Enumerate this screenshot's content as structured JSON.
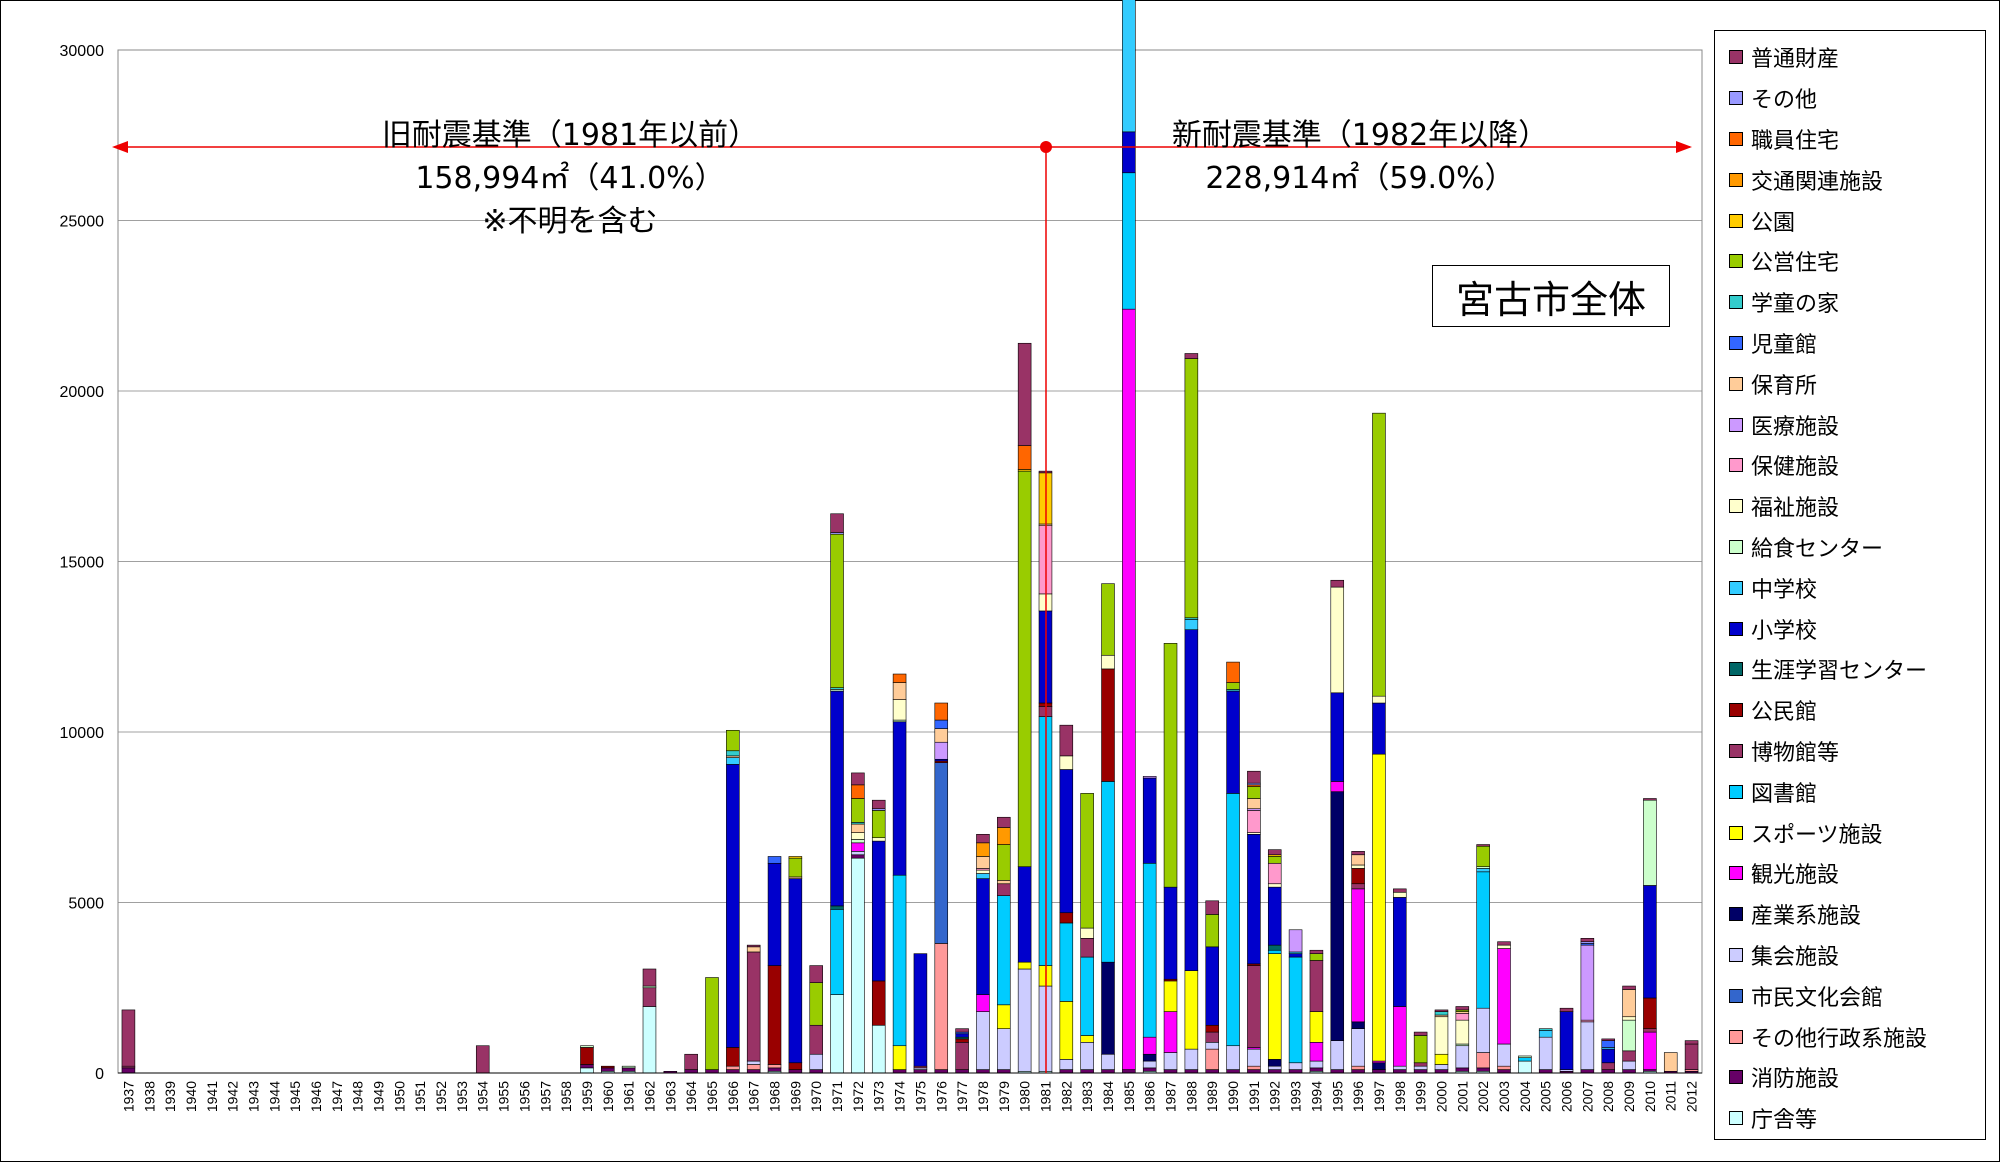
{
  "chart_data": {
    "type": "bar",
    "stacked": true,
    "title": "宮古市全体",
    "xlabel": "",
    "ylabel": "",
    "ylim": [
      0,
      30000
    ],
    "yticks": [
      0,
      5000,
      10000,
      15000,
      20000,
      25000,
      30000
    ],
    "grid": true,
    "legend_position": "right",
    "categories": [
      "1937",
      "1938",
      "1939",
      "1940",
      "1941",
      "1942",
      "1943",
      "1944",
      "1945",
      "1946",
      "1947",
      "1948",
      "1949",
      "1950",
      "1951",
      "1952",
      "1953",
      "1954",
      "1955",
      "1956",
      "1957",
      "1958",
      "1959",
      "1960",
      "1961",
      "1962",
      "1963",
      "1964",
      "1965",
      "1966",
      "1967",
      "1968",
      "1969",
      "1970",
      "1971",
      "1972",
      "1973",
      "1974",
      "1975",
      "1976",
      "1977",
      "1978",
      "1979",
      "1980",
      "1981",
      "1982",
      "1983",
      "1984",
      "1985",
      "1986",
      "1987",
      "1988",
      "1989",
      "1990",
      "1991",
      "1992",
      "1993",
      "1994",
      "1995",
      "1996",
      "1997",
      "1998",
      "1999",
      "2000",
      "2001",
      "2002",
      "2003",
      "2004",
      "2005",
      "2006",
      "2007",
      "2008",
      "2009",
      "2010",
      "2011",
      "2012"
    ],
    "annotations": {
      "old": {
        "line1": "旧耐震基準（1981年以前）",
        "line2": "158,994㎡（41.0%）",
        "line3": "※不明を含む"
      },
      "new": {
        "line1": "新耐震基準（1982年以降）",
        "line2": "228,914㎡（59.0%）"
      }
    },
    "series": [
      {
        "name": "庁舎等",
        "color": "#CCFFFF",
        "values": {
          "1959": 150,
          "1960": 50,
          "1961": 50,
          "1962": 1950,
          "1968": 50,
          "1971": 2300,
          "1972": 6300,
          "1973": 1400,
          "1980": 50,
          "1981": 50,
          "1986": 50,
          "1994": 50,
          "2001": 50,
          "2002": 50,
          "2004": 350,
          "2010": 50
        }
      },
      {
        "name": "消防施設",
        "color": "#660066",
        "values": {
          "1937": 150,
          "1959": 100,
          "1960": 100,
          "1961": 100,
          "1963": 50,
          "1964": 100,
          "1965": 100,
          "1966": 100,
          "1967": 100,
          "1968": 100,
          "1969": 100,
          "1970": 100,
          "1972": 100,
          "1974": 100,
          "1975": 100,
          "1976": 100,
          "1977": 100,
          "1978": 100,
          "1979": 100,
          "1982": 100,
          "1983": 100,
          "1984": 100,
          "1985": 100,
          "1986": 100,
          "1987": 100,
          "1988": 100,
          "1989": 100,
          "1990": 100,
          "1991": 100,
          "1992": 100,
          "1993": 100,
          "1994": 100,
          "1995": 100,
          "1996": 100,
          "1997": 100,
          "1998": 100,
          "1999": 100,
          "2000": 100,
          "2001": 100,
          "2002": 100,
          "2003": 100,
          "2005": 100,
          "2006": 50,
          "2007": 100,
          "2008": 100,
          "2009": 100,
          "2010": 50,
          "2011": 50,
          "2012": 50
        }
      },
      {
        "name": "その他行政系施設",
        "color": "#FF9999",
        "values": {
          "1966": 100,
          "1967": 150,
          "1968": 100,
          "1976": 3700,
          "1989": 600,
          "1991": 100,
          "1996": 100,
          "2002": 450,
          "2003": 100,
          "2012": 50
        }
      },
      {
        "name": "市民文化会館",
        "color": "#3366CC",
        "values": {
          "1976": 5300
        }
      },
      {
        "name": "集会施設",
        "color": "#CCCCFF",
        "values": {
          "1967": 100,
          "1970": 450,
          "1972": 100,
          "1975": 50,
          "1978": 1700,
          "1979": 1200,
          "1980": 3000,
          "1981": 2500,
          "1982": 300,
          "1983": 800,
          "1984": 450,
          "1986": 200,
          "1987": 500,
          "1988": 600,
          "1989": 200,
          "1990": 700,
          "1991": 500,
          "1992": 100,
          "1993": 200,
          "1994": 200,
          "1995": 850,
          "1996": 1100,
          "1998": 100,
          "1999": 100,
          "2000": 150,
          "2001": 650,
          "2002": 1300,
          "2003": 650,
          "2005": 950,
          "2006": 50,
          "2007": 1400,
          "2009": 250
        }
      },
      {
        "name": "産業系施設",
        "color": "#000066",
        "values": {
          "1984": 2700,
          "1986": 200,
          "1992": 200,
          "1995": 7300,
          "1996": 200,
          "1997": 200
        }
      },
      {
        "name": "観光施設",
        "color": "#FF00FF",
        "values": {
          "1972": 250,
          "1978": 500,
          "1983": 0,
          "1985": 22300,
          "1986": 500,
          "1987": 1200,
          "1991": 50,
          "1994": 550,
          "1995": 300,
          "1996": 3900,
          "1997": 50,
          "1998": 1750,
          "2003": 2800,
          "2010": 1100
        }
      },
      {
        "name": "スポーツ施設",
        "color": "#FFFF00",
        "values": {
          "1974": 700,
          "1979": 700,
          "1980": 200,
          "1981": 600,
          "1982": 1700,
          "1983": 200,
          "1987": 900,
          "1988": 2300,
          "1992": 3100,
          "1994": 900,
          "1997": 9000,
          "2000": 300
        }
      },
      {
        "name": "図書館",
        "color": "#00CCFF",
        "values": {
          "1971": 2500,
          "1974": 5000,
          "1979": 3200,
          "1981": 7300,
          "1982": 2300,
          "1983": 2300,
          "1984": 5300,
          "1985": 4000,
          "1986": 5100,
          "1990": 7400,
          "1992": 100,
          "1993": 3100,
          "2002": 4000,
          "2004": 100
        }
      },
      {
        "name": "博物館等",
        "color": "#993366",
        "values": {
          "1937": 50,
          "1954": 800,
          "1962": 550,
          "1964": 450,
          "1967": 3200,
          "1970": 850,
          "1975": 50,
          "1977": 800,
          "1979": 350,
          "1981": 300,
          "1983": 550,
          "1989": 300,
          "1991": 2400,
          "1994": 1500,
          "1996": 150,
          "1999": 100,
          "2008": 200,
          "2009": 300,
          "2010": 100,
          "2012": 750
        }
      },
      {
        "name": "公民館",
        "color": "#990000",
        "values": {
          "1959": 500,
          "1960": 50,
          "1966": 550,
          "1968": 2900,
          "1969": 200,
          "1973": 1300,
          "1976": 50,
          "1977": 100,
          "1981": 100,
          "1982": 300,
          "1984": 3300,
          "1987": 50,
          "1989": 200,
          "1991": 50,
          "1996": 450,
          "2010": 900
        }
      },
      {
        "name": "生涯学習センター",
        "color": "#006666",
        "values": {
          "1971": 100,
          "1977": 50,
          "1992": 150
        }
      },
      {
        "name": "小学校",
        "color": "#0000CC",
        "values": {
          "1966": 8300,
          "1968": 3000,
          "1969": 5400,
          "1971": 6300,
          "1973": 4100,
          "1974": 4500,
          "1975": 3300,
          "1976": 50,
          "1977": 100,
          "1978": 3400,
          "1980": 2800,
          "1981": 2700,
          "1982": 4200,
          "1984": 0,
          "1985": 1200,
          "1986": 2500,
          "1987": 2700,
          "1988": 10000,
          "1989": 2300,
          "1990": 3000,
          "1991": 3800,
          "1992": 1700,
          "1993": 100,
          "1995": 2600,
          "1997": 1500,
          "1998": 3200,
          "2006": 1700,
          "2008": 400,
          "2010": 3300
        }
      },
      {
        "name": "中学校",
        "color": "#33CCFF",
        "values": {
          "1966": 200,
          "1978": 150,
          "1985": 4100,
          "1988": 300,
          "1993": 50,
          "2002": 100,
          "2005": 200,
          "2008": 50
        }
      },
      {
        "name": "給食センター",
        "color": "#CCFFCC",
        "values": {
          "1959": 50,
          "1961": 50,
          "1962": 50,
          "1971": 50,
          "1972": 100,
          "1974": 50,
          "2001": 50,
          "2002": 50,
          "2004": 50,
          "2009": 900,
          "2010": 2500
        }
      },
      {
        "name": "福祉施設",
        "color": "#FFFFCC",
        "values": {
          "1972": 200,
          "1973": 100,
          "1974": 600,
          "1978": 100,
          "1981": 500,
          "1982": 400,
          "1983": 300,
          "1984": 400,
          "1991": 50,
          "1992": 100,
          "1995": 3100,
          "1996": 100,
          "1997": 200,
          "1998": 150,
          "2000": 1100,
          "2001": 700,
          "2003": 100,
          "2009": 100
        }
      },
      {
        "name": "保健施設",
        "color": "#FF99CC",
        "values": {
          "1978": 50,
          "1981": 2000,
          "1991": 650,
          "1992": 600,
          "2001": 200,
          "2007": 50
        }
      },
      {
        "name": "医療施設",
        "color": "#CC99FF",
        "values": {
          "1976": 500,
          "1986": 50,
          "1991": 50,
          "1993": 650,
          "2007": 2200
        }
      },
      {
        "name": "保育所",
        "color": "#FFCC99",
        "values": {
          "1966": 50,
          "1967": 150,
          "1969": 50,
          "1972": 250,
          "1974": 500,
          "1976": 400,
          "1978": 350,
          "1979": 100,
          "1981": 50,
          "1991": 300,
          "1996": 300,
          "2000": 50,
          "2001": 50,
          "2009": 800,
          "2011": 550
        }
      },
      {
        "name": "児童館",
        "color": "#3366FF",
        "values": {
          "1968": 200,
          "1976": 250,
          "1977": 50,
          "2007": 50,
          "2008": 200
        }
      },
      {
        "name": "学童の家",
        "color": "#33CCCC",
        "values": {
          "1966": 150,
          "1971": 50,
          "1972": 50,
          "1985": 50,
          "1988": 50,
          "1990": 50,
          "2000": 100,
          "2004": 0,
          "2005": 50
        }
      },
      {
        "name": "公営住宅",
        "color": "#99CC00",
        "values": {
          "1965": 2700,
          "1966": 600,
          "1969": 550,
          "1970": 1250,
          "1971": 4500,
          "1972": 700,
          "1973": 800,
          "1979": 1050,
          "1980": 11600,
          "1982": 0,
          "1983": 3950,
          "1984": 2100,
          "1985": 550,
          "1987": 7150,
          "1988": 7600,
          "1989": 950,
          "1990": 200,
          "1991": 350,
          "1992": 200,
          "1994": 200,
          "1997": 8300,
          "1999": 800,
          "2001": 50,
          "2002": 600
        }
      },
      {
        "name": "公園",
        "color": "#FFCC00",
        "values": {
          "1969": 50,
          "1980": 50,
          "1981": 1500,
          "1983": 0,
          "1992": 50
        }
      },
      {
        "name": "交通関連施設",
        "color": "#FF9900",
        "values": {
          "1978": 400,
          "1979": 500,
          "1985": 550
        }
      },
      {
        "name": "職員住宅",
        "color": "#FF6600",
        "values": {
          "1972": 400,
          "1974": 250,
          "1976": 500,
          "1980": 700,
          "1990": 600,
          "1991": 50
        }
      },
      {
        "name": "その他",
        "color": "#9999FF",
        "values": {
          "1971": 50,
          "1973": 50,
          "1991": 50,
          "2007": 50
        }
      },
      {
        "name": "普通財産",
        "color": "#993366",
        "values": {
          "1937": 1650,
          "1962": 500,
          "1967": 50,
          "1970": 500,
          "1971": 550,
          "1972": 350,
          "1973": 250,
          "1977": 100,
          "1978": 250,
          "1979": 300,
          "1980": 3000,
          "1981": 50,
          "1982": 900,
          "1985": 150,
          "1988": 150,
          "1989": 400,
          "1991": 350,
          "1992": 150,
          "1994": 100,
          "1995": 200,
          "1996": 100,
          "1998": 100,
          "1999": 100,
          "2000": 50,
          "2001": 100,
          "2002": 50,
          "2003": 100,
          "2006": 100,
          "2007": 100,
          "2008": 50,
          "2009": 100,
          "2010": 50,
          "2012": 100
        }
      }
    ]
  }
}
